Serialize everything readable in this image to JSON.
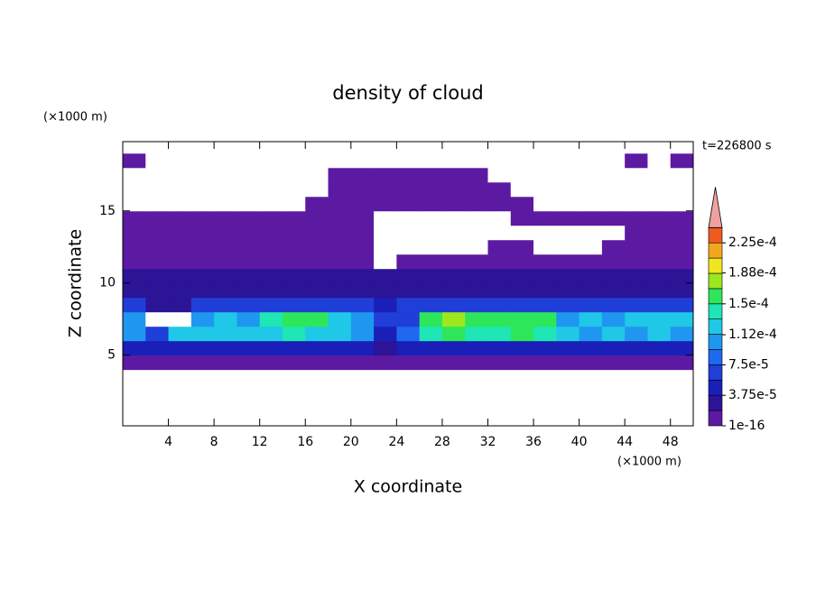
{
  "chart_data": {
    "type": "contour",
    "title": "density of cloud",
    "x_label": "X coordinate",
    "y_label": "Z coordinate",
    "x_unit": "(×1000 m)",
    "y_unit": "(×1000 m)",
    "annotation": "t=226800 s",
    "xlim": [
      0,
      50
    ],
    "ylim": [
      0.1,
      19.8
    ],
    "xticks": [
      4,
      8,
      12,
      16,
      20,
      24,
      28,
      32,
      36,
      40,
      44,
      48
    ],
    "yticks": [
      5,
      10,
      15
    ],
    "x": [
      1,
      3,
      5,
      7,
      9,
      11,
      13,
      15,
      17,
      19,
      21,
      23,
      25,
      27,
      29,
      31,
      33,
      35,
      37,
      39,
      41,
      43,
      45,
      47,
      49
    ],
    "y": [
      0.5,
      1.5,
      2.5,
      3.5,
      4.5,
      5.5,
      6.5,
      7.5,
      8.5,
      9.5,
      10.5,
      11.5,
      12.5,
      13.5,
      14.5,
      15.5,
      16.5,
      17.5,
      18.5,
      19.5
    ],
    "values": [
      [
        0,
        0,
        0,
        0,
        0,
        0,
        0,
        0,
        0,
        0,
        0,
        0,
        0,
        0,
        0,
        0,
        0,
        0,
        0,
        0,
        0,
        0,
        0,
        0,
        0
      ],
      [
        0,
        0,
        0,
        0,
        0,
        0,
        0,
        0,
        0,
        0,
        0,
        0,
        0,
        0,
        0,
        0,
        0,
        0,
        0,
        0,
        0,
        0,
        0,
        0,
        0
      ],
      [
        0,
        0,
        0,
        0,
        0,
        0,
        0,
        0,
        0,
        0,
        0,
        0,
        0,
        0,
        0,
        0,
        0,
        0,
        0,
        0,
        0,
        0,
        0,
        0,
        0
      ],
      [
        0,
        0,
        0,
        0,
        0,
        0,
        0,
        0,
        0,
        0,
        0,
        0,
        0,
        0,
        0,
        0,
        0,
        0,
        0,
        0,
        0,
        0,
        0,
        0,
        0
      ],
      [
        1e-05,
        1e-05,
        1e-05,
        1e-05,
        1e-05,
        1e-05,
        1e-05,
        1e-05,
        1e-05,
        1e-05,
        1e-05,
        1e-05,
        1e-05,
        1e-05,
        1e-05,
        1e-05,
        1e-05,
        1e-05,
        1e-05,
        1e-05,
        1e-05,
        1e-05,
        1e-05,
        1e-05,
        1e-05
      ],
      [
        5e-05,
        5e-05,
        5e-05,
        5e-05,
        5e-05,
        5e-05,
        5e-05,
        5e-05,
        5e-05,
        5e-05,
        5e-05,
        3e-05,
        5e-05,
        5e-05,
        5e-05,
        5e-05,
        5e-05,
        5e-05,
        5e-05,
        5e-05,
        5e-05,
        5e-05,
        5e-05,
        5e-05,
        5e-05
      ],
      [
        0.0001,
        6e-05,
        0.00012,
        0.00013,
        0.00013,
        0.00012,
        0.00013,
        0.00014,
        0.00013,
        0.00012,
        0.00011,
        5e-05,
        8e-05,
        0.00014,
        0.00015,
        0.00014,
        0.00014,
        0.00015,
        0.00014,
        0.00012,
        0.00011,
        0.00012,
        0.0001,
        0.00012,
        0.00011
      ],
      [
        0.00011,
        0,
        0,
        0.0001,
        0.00012,
        0.00011,
        0.00014,
        0.00016,
        0.00015,
        0.00013,
        0.00011,
        6e-05,
        7e-05,
        0.00015,
        0.00017,
        0.00015,
        0.00015,
        0.00016,
        0.00015,
        0.00011,
        0.00012,
        0.00011,
        0.00012,
        0.00013,
        0.00012
      ],
      [
        6e-05,
        2e-05,
        3e-05,
        6e-05,
        6e-05,
        6e-05,
        6e-05,
        6e-05,
        6e-05,
        6e-05,
        6e-05,
        4e-05,
        6e-05,
        6e-05,
        6e-05,
        6e-05,
        6e-05,
        6e-05,
        6e-05,
        6e-05,
        6e-05,
        6e-05,
        6e-05,
        6e-05,
        6e-05
      ],
      [
        3e-05,
        3e-05,
        3e-05,
        3e-05,
        2e-05,
        3e-05,
        3e-05,
        3e-05,
        3e-05,
        2e-05,
        3e-05,
        3e-05,
        3e-05,
        3e-05,
        3e-05,
        3e-05,
        3e-05,
        2e-05,
        3e-05,
        3e-05,
        3e-05,
        3e-05,
        2e-05,
        3e-05,
        3e-05
      ],
      [
        2e-05,
        2e-05,
        2e-05,
        2e-05,
        2e-05,
        2e-05,
        2e-05,
        2e-05,
        2e-05,
        2e-05,
        2e-05,
        2e-05,
        2e-05,
        2e-05,
        2e-05,
        2e-05,
        2e-05,
        2e-05,
        2e-05,
        2e-05,
        2e-05,
        2e-05,
        2e-05,
        2e-05,
        2e-05
      ],
      [
        1e-05,
        1e-05,
        1e-05,
        1e-05,
        1e-05,
        1e-05,
        1e-05,
        1e-05,
        1e-05,
        1e-05,
        1e-05,
        0,
        1e-05,
        1e-05,
        1e-05,
        1e-05,
        1e-05,
        1e-05,
        1e-05,
        1e-05,
        1e-05,
        1e-05,
        1e-05,
        1e-05,
        1e-05
      ],
      [
        1e-05,
        1e-05,
        1e-05,
        1e-05,
        1e-05,
        1e-05,
        1e-05,
        1e-05,
        1e-05,
        1e-05,
        1e-05,
        0,
        0,
        0,
        0,
        0,
        1e-05,
        1e-05,
        0,
        0,
        0,
        1e-05,
        1e-05,
        1e-05,
        1e-05
      ],
      [
        1e-05,
        1e-05,
        1e-05,
        1e-05,
        1e-05,
        1e-05,
        1e-05,
        1e-05,
        1e-05,
        1e-05,
        1e-05,
        0,
        0,
        0,
        0,
        0,
        0,
        0,
        0,
        0,
        0,
        0,
        1e-05,
        1e-05,
        1e-05
      ],
      [
        1e-05,
        1e-05,
        1e-05,
        1e-05,
        1e-05,
        1e-05,
        1e-05,
        1e-05,
        1e-05,
        1e-05,
        1e-05,
        0,
        0,
        0,
        0,
        0,
        0,
        1e-05,
        1e-05,
        1e-05,
        1e-05,
        1e-05,
        1e-05,
        1e-05,
        1e-05
      ],
      [
        0,
        0,
        0,
        0,
        0,
        0,
        0,
        0,
        1e-05,
        1e-05,
        1e-05,
        1e-05,
        1e-05,
        1e-05,
        1e-05,
        1e-05,
        1e-05,
        1e-05,
        0,
        0,
        0,
        0,
        0,
        0,
        0
      ],
      [
        0,
        0,
        0,
        0,
        0,
        0,
        0,
        0,
        0,
        1e-05,
        1e-05,
        1e-05,
        1e-05,
        1e-05,
        1e-05,
        1e-05,
        1e-05,
        0,
        0,
        0,
        0,
        0,
        0,
        0,
        0
      ],
      [
        0,
        0,
        0,
        0,
        0,
        0,
        0,
        0,
        0,
        1e-05,
        1e-05,
        1e-05,
        1e-05,
        1e-05,
        1e-05,
        1e-05,
        0,
        0,
        0,
        0,
        0,
        0,
        0,
        0,
        0
      ],
      [
        1e-05,
        0,
        0,
        0,
        0,
        0,
        0,
        0,
        0,
        0,
        0,
        0,
        0,
        0,
        0,
        0,
        0,
        0,
        0,
        0,
        0,
        0,
        1e-05,
        0,
        1e-05
      ],
      [
        0,
        0,
        0,
        0,
        0,
        0,
        0,
        0,
        0,
        0,
        0,
        0,
        0,
        0,
        0,
        0,
        0,
        0,
        0,
        0,
        0,
        0,
        0,
        0,
        0
      ]
    ],
    "levels": [
      1e-16,
      1.875e-05,
      3.75e-05,
      5.625e-05,
      7.5e-05,
      9.375e-05,
      0.0001125,
      0.00013125,
      0.00015,
      0.00016875,
      0.0001875,
      0.00020625,
      0.000225,
      0.00024375
    ],
    "colors": [
      "#5c1aa3",
      "#2c1497",
      "#1a1fb8",
      "#1f3fd8",
      "#1f68f0",
      "#1f97f0",
      "#1ec8e6",
      "#1ee6b4",
      "#2ee65a",
      "#9ee61e",
      "#f0e61e",
      "#f0a81e",
      "#f05a1e",
      "#f0a0a0"
    ],
    "colorbar_ticks": [
      1e-16,
      {
        "value": 3.75e-05,
        "label": "3.75e-5"
      },
      {
        "value": 7.5e-05,
        "label": "7.5e-5"
      },
      {
        "value": 0.000112,
        "label": "1.12e-4"
      },
      {
        "value": 0.00015,
        "label": "1.5e-4"
      },
      {
        "value": 0.000188,
        "label": "1.88e-4"
      },
      {
        "value": 0.000225,
        "label": "2.25e-4"
      }
    ]
  }
}
